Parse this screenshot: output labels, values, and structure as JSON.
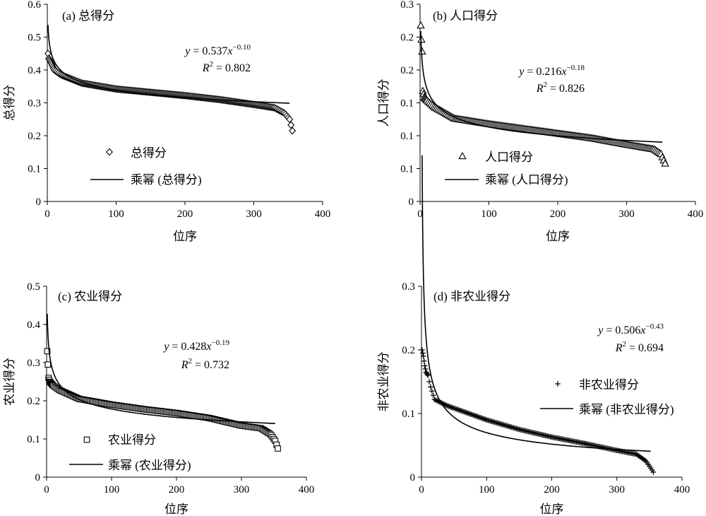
{
  "chart_data": [
    {
      "id": "a",
      "type": "scatter",
      "title": "(a) 总得分",
      "xlabel": "位序",
      "ylabel": "总得分",
      "xlim": [
        0,
        400
      ],
      "ylim": [
        0,
        0.6
      ],
      "xticks": [
        "0",
        "100",
        "200",
        "300",
        "400"
      ],
      "yticks": [
        "0",
        "0.1",
        "0.2",
        "0.3",
        "0.4",
        "0.5",
        "0.6"
      ],
      "marker": "diamond",
      "grid": false,
      "legend_position": "lower-left",
      "equation": {
        "lhs": "y",
        "eq": " = ",
        "coef": "0.537",
        "var": "x",
        "exp": "−0.10"
      },
      "r2": {
        "label": "R",
        "sup": "2",
        "value": " = 0.802"
      },
      "series": [
        {
          "name": "总得分",
          "kind": "scatter",
          "anchors": [
            [
              1,
              0.45
            ],
            [
              2,
              0.435
            ],
            [
              4,
              0.428
            ],
            [
              6,
              0.42
            ],
            [
              10,
              0.4
            ],
            [
              20,
              0.385
            ],
            [
              50,
              0.36
            ],
            [
              100,
              0.342
            ],
            [
              150,
              0.332
            ],
            [
              200,
              0.322
            ],
            [
              250,
              0.31
            ],
            [
              300,
              0.295
            ],
            [
              330,
              0.285
            ],
            [
              345,
              0.268
            ],
            [
              352,
              0.25
            ],
            [
              356,
              0.215
            ]
          ]
        },
        {
          "name": "乘幂 (总得分)",
          "kind": "fit",
          "coef": 0.537,
          "exp": -0.1,
          "x_end": 352
        }
      ]
    },
    {
      "id": "b",
      "type": "scatter",
      "title": "(b) 人口得分",
      "xlabel": "位序",
      "ylabel": "人口得分",
      "xlim": [
        0,
        400
      ],
      "ylim": [
        0,
        0.25
      ],
      "xticks": [
        "0",
        "100",
        "200",
        "300",
        "400"
      ],
      "yticks": [
        "0",
        "0.1",
        "0.1",
        "0.1",
        "0.2",
        "0.2",
        "0.3"
      ],
      "marker": "triangle",
      "grid": false,
      "legend_position": "lower-left",
      "equation": {
        "lhs": "y",
        "eq": " = ",
        "coef": "0.216",
        "var": "x",
        "exp": "−0.18"
      },
      "r2": {
        "label": "R",
        "sup": "2",
        "value": " = 0.826"
      },
      "series": [
        {
          "name": "人口得分",
          "kind": "scatter",
          "anchors": [
            [
              1,
              0.223
            ],
            [
              2,
              0.205
            ],
            [
              3,
              0.19
            ],
            [
              4,
              0.14
            ],
            [
              6,
              0.132
            ],
            [
              10,
              0.128
            ],
            [
              20,
              0.12
            ],
            [
              50,
              0.105
            ],
            [
              100,
              0.098
            ],
            [
              150,
              0.092
            ],
            [
              200,
              0.086
            ],
            [
              250,
              0.08
            ],
            [
              300,
              0.072
            ],
            [
              340,
              0.066
            ],
            [
              350,
              0.06
            ],
            [
              356,
              0.048
            ]
          ]
        },
        {
          "name": "乘幂 (人口得分)",
          "kind": "fit",
          "coef": 0.216,
          "exp": -0.18,
          "x_end": 352
        }
      ]
    },
    {
      "id": "c",
      "type": "scatter",
      "title": "(c) 农业得分",
      "xlabel": "位序",
      "ylabel": "农业得分",
      "xlim": [
        0,
        400
      ],
      "ylim": [
        0,
        0.5
      ],
      "xticks": [
        "0",
        "100",
        "200",
        "300",
        "400"
      ],
      "yticks": [
        "0",
        "0.1",
        "0.2",
        "0.3",
        "0.4",
        "0.5"
      ],
      "marker": "square",
      "grid": false,
      "legend_position": "lower-left",
      "equation": {
        "lhs": "y",
        "eq": " = ",
        "coef": "0.428",
        "var": "x",
        "exp": "−0.19"
      },
      "r2": {
        "label": "R",
        "sup": "2",
        "value": " = 0.732"
      },
      "series": [
        {
          "name": "农业得分",
          "kind": "scatter",
          "anchors": [
            [
              1,
              0.33
            ],
            [
              2,
              0.295
            ],
            [
              3,
              0.26
            ],
            [
              5,
              0.25
            ],
            [
              10,
              0.24
            ],
            [
              20,
              0.228
            ],
            [
              50,
              0.205
            ],
            [
              100,
              0.19
            ],
            [
              150,
              0.178
            ],
            [
              200,
              0.168
            ],
            [
              250,
              0.155
            ],
            [
              300,
              0.135
            ],
            [
              330,
              0.128
            ],
            [
              345,
              0.112
            ],
            [
              352,
              0.095
            ],
            [
              356,
              0.075
            ]
          ]
        },
        {
          "name": "乘幂 (农业得分)",
          "kind": "fit",
          "coef": 0.428,
          "exp": -0.19,
          "x_end": 352
        }
      ]
    },
    {
      "id": "d",
      "type": "scatter",
      "title": "(d) 非农业得分",
      "xlabel": "位序",
      "ylabel": "非农业得分",
      "xlim": [
        0,
        400
      ],
      "ylim": [
        0,
        0.3
      ],
      "xticks": [
        "0",
        "100",
        "200",
        "300",
        "400"
      ],
      "yticks": [
        "0",
        "0.1",
        "0.2",
        "0.3"
      ],
      "marker": "plus",
      "grid": false,
      "legend_position": "center-right",
      "equation": {
        "lhs": "y",
        "eq": " = ",
        "coef": "0.506",
        "var": "x",
        "exp": "−0.43"
      },
      "r2": {
        "label": "R",
        "sup": "2",
        "value": " = 0.694"
      },
      "series": [
        {
          "name": "非农业得分",
          "kind": "scatter",
          "anchors": [
            [
              1,
              0.2
            ],
            [
              3,
              0.19
            ],
            [
              5,
              0.175
            ],
            [
              7,
              0.165
            ],
            [
              10,
              0.16
            ],
            [
              13,
              0.145
            ],
            [
              20,
              0.122
            ],
            [
              40,
              0.112
            ],
            [
              100,
              0.09
            ],
            [
              150,
              0.075
            ],
            [
              200,
              0.063
            ],
            [
              250,
              0.053
            ],
            [
              300,
              0.042
            ],
            [
              330,
              0.036
            ],
            [
              345,
              0.025
            ],
            [
              356,
              0.008
            ]
          ]
        },
        {
          "name": "乘幂 (非农业得分)",
          "kind": "fit",
          "coef": 0.506,
          "exp": -0.43,
          "x_end": 352
        }
      ]
    }
  ]
}
